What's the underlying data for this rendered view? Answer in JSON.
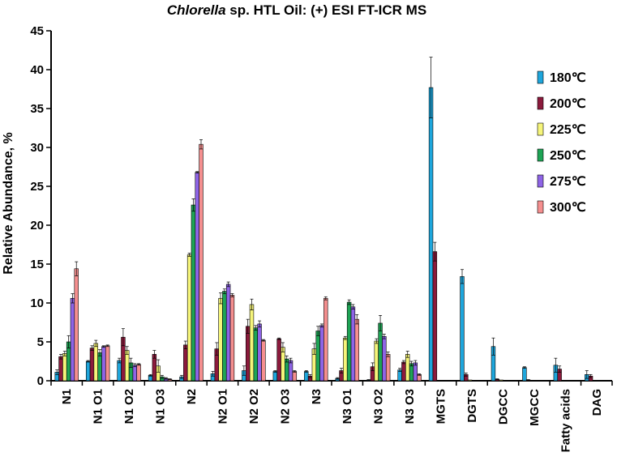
{
  "chart_data": {
    "type": "bar",
    "title_italic": "Chlorella",
    "title_rest": " sp. HTL Oil: (+) ESI FT-ICR MS",
    "ylabel": "Relative Abundance, %",
    "xlabel": "",
    "ylim": [
      0,
      45
    ],
    "yticks": [
      0,
      5,
      10,
      15,
      20,
      25,
      30,
      35,
      40,
      45
    ],
    "legend_position": "top-right",
    "categories": [
      "N1",
      "N1 O1",
      "N1 O2",
      "N1 O3",
      "N2",
      "N2 O1",
      "N2 O2",
      "N2 O3",
      "N3",
      "N3 O1",
      "N3 O2",
      "N3 O3",
      "MGTS",
      "DGTS",
      "DGCC",
      "MGCC",
      "Fatty acids",
      "DAG"
    ],
    "series": [
      {
        "name": "180℃",
        "color": "#1ea6dc",
        "values": [
          1.1,
          2.5,
          2.6,
          0.7,
          0.5,
          0.9,
          1.3,
          1.2,
          1.2,
          0.3,
          0.1,
          1.4,
          37.7,
          13.4,
          4.4,
          1.7,
          2.0,
          0.8
        ],
        "errors": [
          0.3,
          0.1,
          0.3,
          0.1,
          0.2,
          0.3,
          0.6,
          0.1,
          0.1,
          0.1,
          0.05,
          0.2,
          3.9,
          0.9,
          1.1,
          0.1,
          0.9,
          0.5
        ]
      },
      {
        "name": "200℃",
        "color": "#8b1a3c",
        "values": [
          3.1,
          4.2,
          5.6,
          3.4,
          4.6,
          4.1,
          7.0,
          5.4,
          0.6,
          1.3,
          1.8,
          2.4,
          16.6,
          0.8,
          0.2,
          0.1,
          1.5,
          0.6
        ],
        "errors": [
          0.3,
          0.3,
          1.1,
          0.5,
          0.5,
          0.8,
          0.9,
          0.1,
          0.2,
          0.3,
          0.5,
          0.2,
          1.2,
          0.2,
          0.05,
          0.05,
          0.4,
          0.2
        ]
      },
      {
        "name": "225℃",
        "color": "#f6f57a",
        "values": [
          3.5,
          4.8,
          3.9,
          1.9,
          16.2,
          10.6,
          9.8,
          4.3,
          4.1,
          5.5,
          5.1,
          3.4,
          0,
          0.1,
          0.1,
          0,
          0,
          0
        ],
        "errors": [
          0.3,
          0.4,
          0.5,
          0.8,
          0.2,
          0.7,
          0.7,
          0.6,
          0.7,
          0.2,
          0.3,
          0.4,
          0,
          0,
          0,
          0,
          0,
          0
        ]
      },
      {
        "name": "250℃",
        "color": "#1ea455",
        "values": [
          5.0,
          3.6,
          2.3,
          0.5,
          22.6,
          11.5,
          6.8,
          2.8,
          6.4,
          10.1,
          7.4,
          2.2,
          0,
          0,
          0,
          0,
          0,
          0
        ],
        "errors": [
          0.8,
          0.4,
          0.6,
          0.2,
          0.8,
          0.3,
          0.3,
          0.4,
          0.6,
          0.3,
          1.0,
          0.3,
          0,
          0,
          0,
          0,
          0,
          0
        ]
      },
      {
        "name": "275℃",
        "color": "#8e64e6",
        "values": [
          10.6,
          4.4,
          2.0,
          0.3,
          26.8,
          12.4,
          7.3,
          2.6,
          7.1,
          9.5,
          5.7,
          2.3,
          0,
          0,
          0,
          0,
          0,
          0
        ],
        "errors": [
          0.6,
          0.1,
          0.2,
          0.1,
          0.1,
          0.3,
          0.4,
          0.3,
          0.2,
          0.3,
          0.3,
          0.3,
          0,
          0,
          0,
          0,
          0,
          0
        ]
      },
      {
        "name": "300℃",
        "color": "#f58f8f",
        "values": [
          14.4,
          4.5,
          2.1,
          0.2,
          30.4,
          11.0,
          5.2,
          1.2,
          10.6,
          7.9,
          3.4,
          0.8,
          0,
          0,
          0,
          0,
          0,
          0
        ],
        "errors": [
          0.9,
          0.1,
          0.1,
          0.05,
          0.6,
          0.2,
          0.1,
          0.1,
          0.2,
          0.6,
          0.3,
          0.1,
          0,
          0,
          0,
          0,
          0,
          0
        ]
      }
    ]
  }
}
